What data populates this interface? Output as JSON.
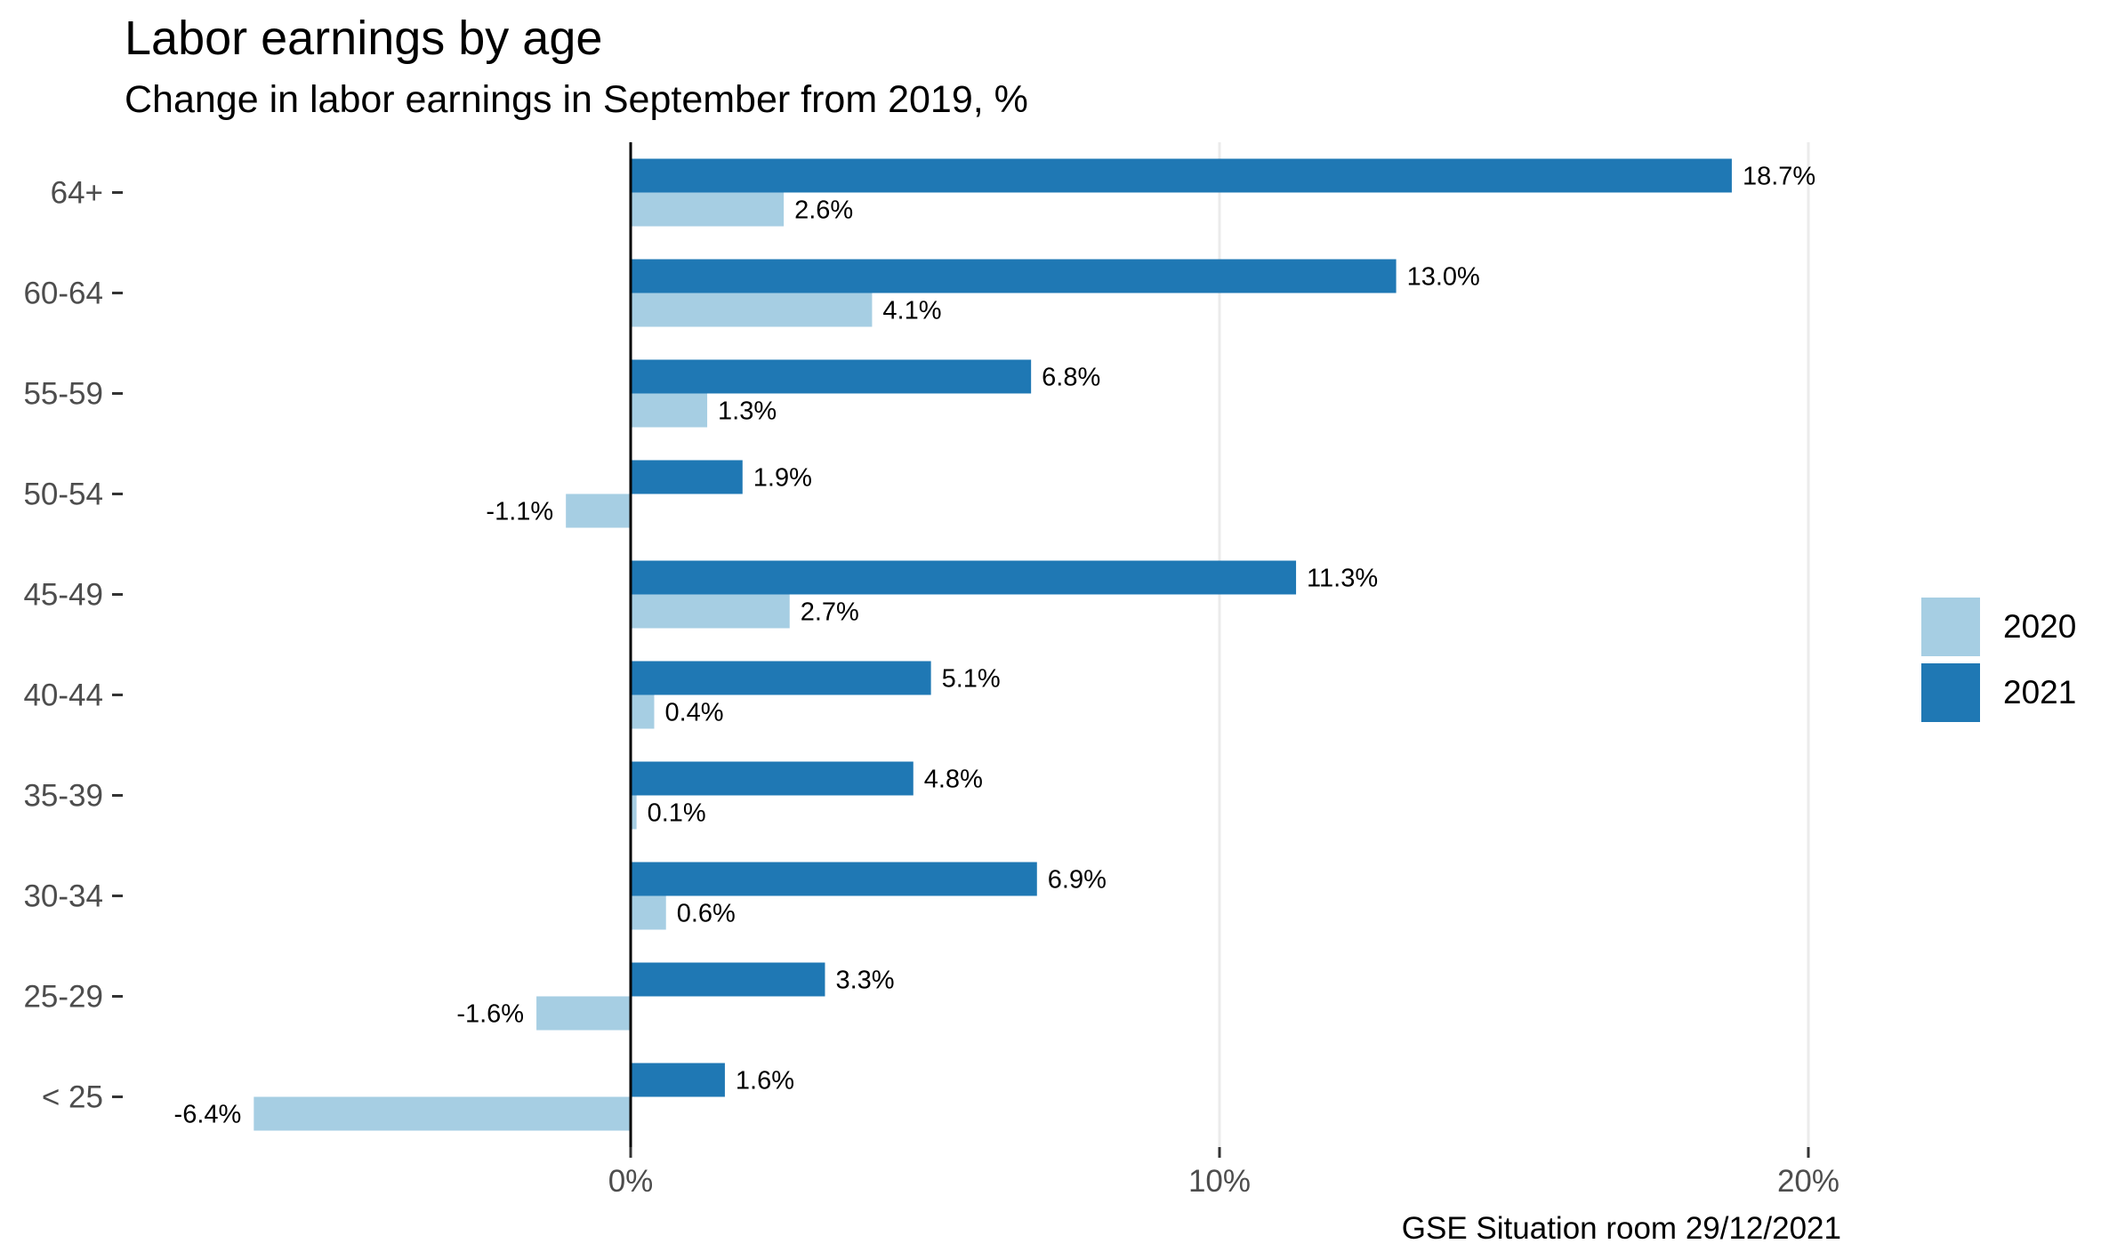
{
  "title": "Labor earnings by age",
  "subtitle": "Change in labor earnings in September from 2019, %",
  "caption": "GSE Situation room 29/12/2021",
  "chart_data": {
    "type": "bar",
    "orientation": "horizontal",
    "categories": [
      "< 25",
      "25-29",
      "30-34",
      "35-39",
      "40-44",
      "45-49",
      "50-54",
      "55-59",
      "60-64",
      "64+"
    ],
    "series": [
      {
        "name": "2020",
        "color": "#a6cee3",
        "values": [
          -6.4,
          -1.6,
          0.6,
          0.1,
          0.4,
          2.7,
          -1.1,
          1.3,
          4.1,
          2.6
        ],
        "labels": [
          "-6.4%",
          "-1.6%",
          "0.6%",
          "0.1%",
          "0.4%",
          "2.7%",
          "-1.1%",
          "1.3%",
          "4.1%",
          "2.6%"
        ]
      },
      {
        "name": "2021",
        "color": "#1f78b4",
        "values": [
          1.6,
          3.3,
          6.9,
          4.8,
          5.1,
          11.3,
          1.9,
          6.8,
          13.0,
          18.7
        ],
        "labels": [
          "1.6%",
          "3.3%",
          "6.9%",
          "4.8%",
          "5.1%",
          "11.3%",
          "1.9%",
          "6.8%",
          "13.0%",
          "18.7%"
        ]
      }
    ],
    "xticks": [
      0,
      10,
      20
    ],
    "xtick_labels": [
      "0%",
      "10%",
      "20%"
    ],
    "xlim": [
      -7.0,
      22.0
    ],
    "grid": "vertical-major",
    "legend_position": "right"
  }
}
